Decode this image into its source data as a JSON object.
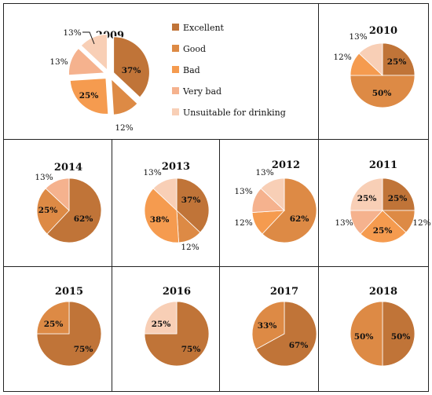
{
  "colors": {
    "Excellent": "#c07438",
    "Good": "#dd8a45",
    "Bad": "#f59b4f",
    "Very bad": "#f5b28e",
    "Unsuitable for drinking": "#f8cfb6"
  },
  "legend": [
    "Excellent",
    "Good",
    "Bad",
    "Very bad",
    "Unsuitable for drinking"
  ],
  "chart_data": [
    {
      "type": "pie",
      "title": "2009",
      "exploded": true,
      "slices": [
        {
          "category": "Excellent",
          "label": "37%"
        },
        {
          "category": "Good",
          "label": "12%"
        },
        {
          "category": "Bad",
          "label": "25%"
        },
        {
          "category": "Very bad",
          "label": "13%"
        },
        {
          "category": "Unsuitable for drinking",
          "label": "13%"
        }
      ]
    },
    {
      "type": "pie",
      "title": "2010",
      "slices": [
        {
          "category": "Excellent",
          "label": "25%"
        },
        {
          "category": "Good",
          "label": "50%"
        },
        {
          "category": "Bad",
          "label": "12%"
        },
        {
          "category": "Unsuitable for drinking",
          "label": "13%"
        }
      ]
    },
    {
      "type": "pie",
      "title": "2014",
      "slices": [
        {
          "category": "Excellent",
          "label": "62%"
        },
        {
          "category": "Good",
          "label": "25%"
        },
        {
          "category": "Very bad",
          "label": "13%"
        }
      ]
    },
    {
      "type": "pie",
      "title": "2013",
      "slices": [
        {
          "category": "Excellent",
          "label": "37%"
        },
        {
          "category": "Good",
          "label": "12%"
        },
        {
          "category": "Bad",
          "label": "38%"
        },
        {
          "category": "Unsuitable for drinking",
          "label": "13%"
        }
      ]
    },
    {
      "type": "pie",
      "title": "2012",
      "slices": [
        {
          "category": "Good",
          "label": "62%"
        },
        {
          "category": "Bad",
          "label": "12%"
        },
        {
          "category": "Very bad",
          "label": "13%"
        },
        {
          "category": "Unsuitable for drinking",
          "label": "13%"
        }
      ]
    },
    {
      "type": "pie",
      "title": "2011",
      "slices": [
        {
          "category": "Excellent",
          "label": "25%"
        },
        {
          "category": "Good",
          "label": "12%"
        },
        {
          "category": "Bad",
          "label": "25%"
        },
        {
          "category": "Very bad",
          "label": "13%"
        },
        {
          "category": "Unsuitable for drinking",
          "label": "25%"
        }
      ]
    },
    {
      "type": "pie",
      "title": "2015",
      "slices": [
        {
          "category": "Excellent",
          "label": "75%"
        },
        {
          "category": "Good",
          "label": "25%"
        }
      ]
    },
    {
      "type": "pie",
      "title": "2016",
      "slices": [
        {
          "category": "Excellent",
          "label": "75%"
        },
        {
          "category": "Unsuitable for drinking",
          "label": "25%"
        }
      ]
    },
    {
      "type": "pie",
      "title": "2017",
      "slices": [
        {
          "category": "Excellent",
          "label": "67%"
        },
        {
          "category": "Good",
          "label": "33%"
        }
      ]
    },
    {
      "type": "pie",
      "title": "2018",
      "slices": [
        {
          "category": "Excellent",
          "label": "50%"
        },
        {
          "category": "Good",
          "label": "50%"
        }
      ]
    }
  ]
}
